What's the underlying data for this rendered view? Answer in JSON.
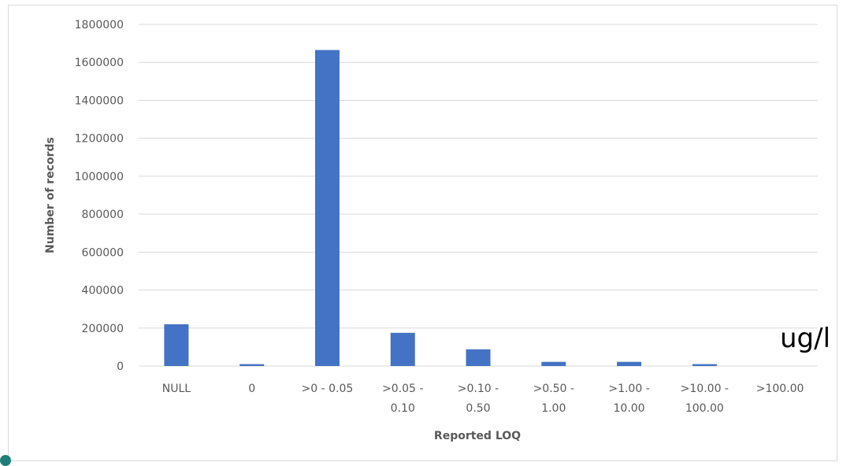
{
  "chart_data": {
    "type": "bar",
    "categories": [
      [
        "NULL"
      ],
      [
        "0"
      ],
      [
        ">0 - 0.05"
      ],
      [
        ">0.05 -",
        "0.10"
      ],
      [
        ">0.10 -",
        "0.50"
      ],
      [
        ">0.50 -",
        "1.00"
      ],
      [
        ">1.00 -",
        "10.00"
      ],
      [
        ">10.00 -",
        "100.00"
      ],
      [
        ">100.00"
      ]
    ],
    "values": [
      220000,
      10000,
      1665000,
      175000,
      88000,
      22000,
      22000,
      10000,
      0
    ],
    "xlabel": "Reported LOQ",
    "ylabel": "Number of records",
    "ylim": [
      0,
      1800000
    ],
    "yticks": [
      "0",
      "200000",
      "400000",
      "600000",
      "800000",
      "1000000",
      "1200000",
      "1400000",
      "1600000",
      "1800000"
    ],
    "grid": true,
    "bar_color": "#4472c4",
    "grid_color": "#d9d9d9"
  },
  "annotation": {
    "unit": "ug/l"
  }
}
